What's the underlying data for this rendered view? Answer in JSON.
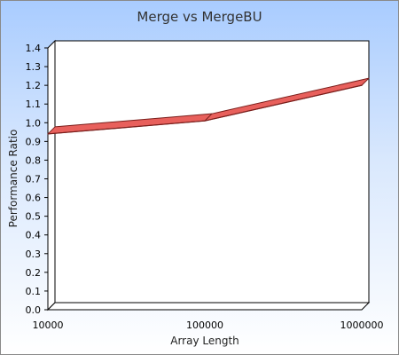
{
  "chart_data": {
    "type": "line",
    "title": "Merge vs MergeBU",
    "xlabel": "Array Length",
    "ylabel": "Performance Ratio",
    "x_scale": "log",
    "categories": [
      "10000",
      "100000",
      "1000000"
    ],
    "y_ticks": [
      "0.0",
      "0.1",
      "0.2",
      "0.3",
      "0.4",
      "0.5",
      "0.6",
      "0.7",
      "0.8",
      "0.9",
      "1.0",
      "1.1",
      "1.2",
      "1.3",
      "1.4"
    ],
    "ylim": [
      0,
      1.4
    ],
    "series": [
      {
        "values": [
          0.94,
          1.01,
          1.2
        ],
        "color": "#e8605c",
        "edge_color": "#7a1f1c"
      }
    ],
    "grid": false,
    "legend": "none",
    "style": "3d-ribbon"
  }
}
